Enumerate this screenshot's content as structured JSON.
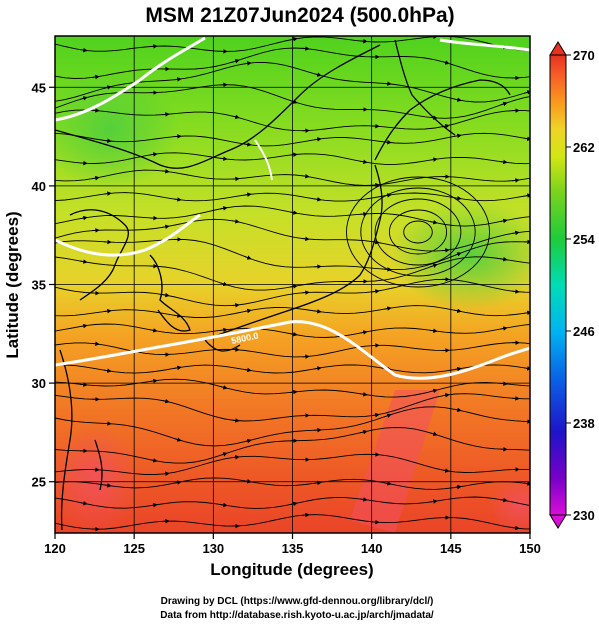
{
  "title": "MSM 21Z07Jun2024 (500.0hPa)",
  "map": {
    "xlabel": "Longitude (degrees)",
    "ylabel": "Latitude  (degrees)",
    "lon_ticks": [
      "120",
      "125",
      "130",
      "135",
      "140",
      "145",
      "150"
    ],
    "lat_ticks": [
      "25",
      "30",
      "35",
      "40",
      "45"
    ],
    "lon_range": [
      120,
      150
    ],
    "lat_range": [
      22.4,
      47.6
    ],
    "grid": true,
    "contour_label": "5800.0"
  },
  "colorbar": {
    "ticks": [
      "270",
      "262",
      "254",
      "246",
      "238",
      "230"
    ],
    "range": [
      230,
      270
    ],
    "colors": [
      "#d90fd9",
      "#5c00c8",
      "#0a14d2",
      "#0073e6",
      "#00bfff",
      "#00dcb4",
      "#1ecc3c",
      "#6ed21e",
      "#c8e614",
      "#f0e628",
      "#fab41e",
      "#fa821e",
      "#f55028",
      "#e6321e"
    ]
  },
  "credits": {
    "line1": "Drawing by DCL (https://www.gfd-dennou.org/library/dcl/)",
    "line2": "Data from http://database.rish.kyoto-u.ac.jp/arch/jmadata/"
  }
}
